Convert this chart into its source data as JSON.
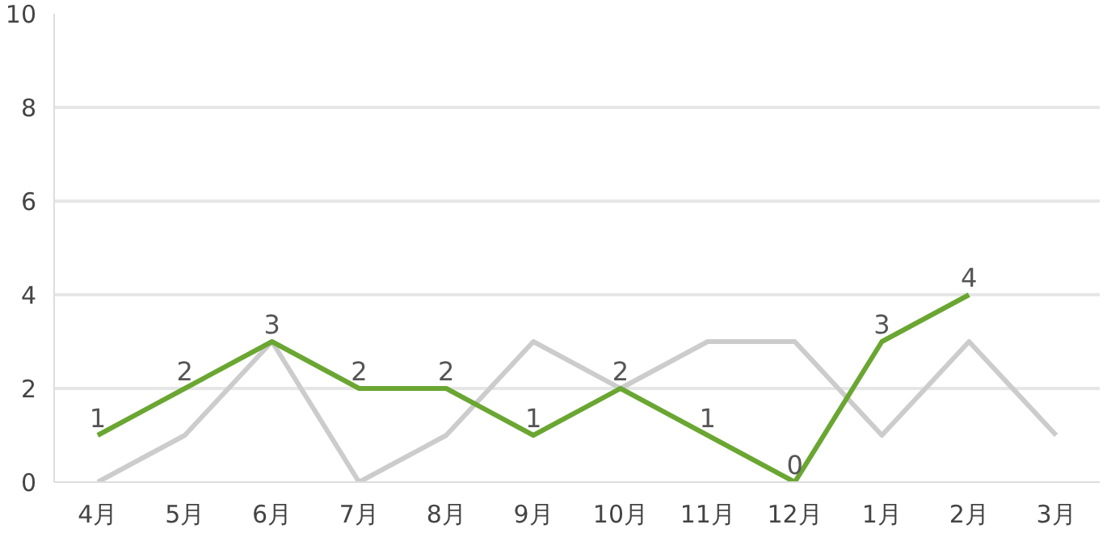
{
  "chart_data": {
    "type": "line",
    "categories": [
      "4月",
      "5月",
      "6月",
      "7月",
      "8月",
      "9月",
      "10月",
      "11月",
      "12月",
      "1月",
      "2月",
      "3月"
    ],
    "series": [
      {
        "color": "#cccccc",
        "values": [
          0,
          1,
          3,
          0,
          1,
          3,
          2,
          3,
          3,
          1,
          3,
          1
        ]
      },
      {
        "color": "#6aa632",
        "values": [
          1,
          2,
          3,
          2,
          2,
          1,
          2,
          1,
          0,
          3,
          4,
          null
        ],
        "value_labels": [
          "1",
          "2",
          "3",
          "2",
          "2",
          "1",
          "2",
          "1",
          "0",
          "3",
          "4",
          null
        ]
      }
    ],
    "ylim": [
      0,
      10
    ],
    "yticks": [
      0,
      2,
      4,
      6,
      8,
      10
    ],
    "grid": "y",
    "marker": "none",
    "line_style": "solid"
  }
}
